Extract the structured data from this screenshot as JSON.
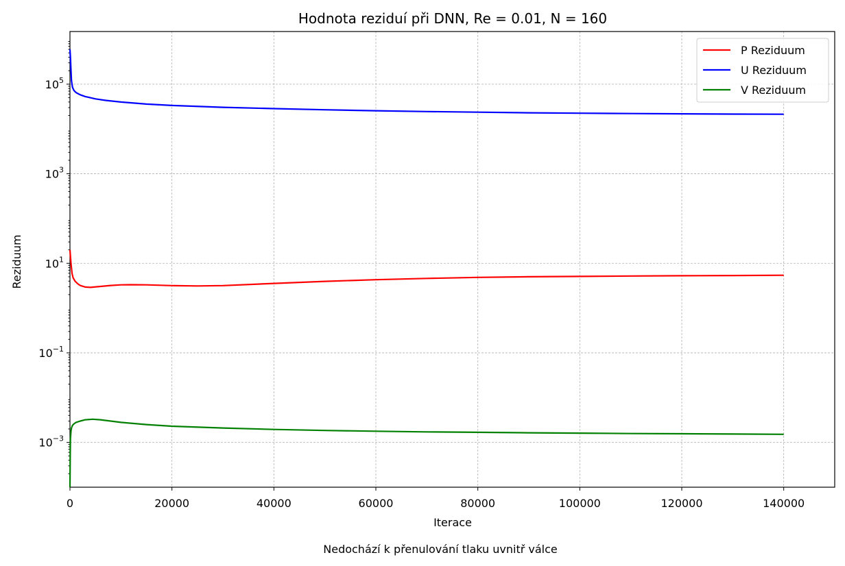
{
  "chart_data": {
    "type": "line",
    "title": "Hodnota reziduí při DNN, Re = 0.01, N = 160",
    "xlabel": "Iterace",
    "ylabel": "Reziduum",
    "caption": "Nedochází k přenulování tlaku uvnitř válce",
    "xlim": [
      0,
      150000
    ],
    "ylim": [
      0.0001,
      1500000
    ],
    "y_scale": "log",
    "grid": true,
    "legend_position": "top-right",
    "x_ticks": [
      "0",
      "20000",
      "40000",
      "60000",
      "80000",
      "100000",
      "120000",
      "140000"
    ],
    "y_ticks": [
      {
        "base": "10",
        "exp": "5",
        "value": 100000
      },
      {
        "base": "10",
        "exp": "3",
        "value": 1000
      },
      {
        "base": "10",
        "exp": "1",
        "value": 10
      },
      {
        "base": "10",
        "exp": "−1",
        "value": 0.1
      },
      {
        "base": "10",
        "exp": "−3",
        "value": 0.001
      }
    ],
    "series": [
      {
        "name": "P Reziduum",
        "color": "#ff0000",
        "x": [
          0,
          200,
          400,
          600,
          1000,
          1500,
          2000,
          3000,
          4000,
          6000,
          8000,
          10000,
          12000,
          15000,
          20000,
          25000,
          30000,
          40000,
          50000,
          60000,
          70000,
          80000,
          90000,
          100000,
          110000,
          120000,
          130000,
          140000
        ],
        "values": [
          20,
          10,
          6,
          4.8,
          4,
          3.5,
          3.2,
          2.95,
          2.9,
          3.05,
          3.2,
          3.3,
          3.33,
          3.3,
          3.18,
          3.12,
          3.18,
          3.55,
          3.95,
          4.3,
          4.6,
          4.85,
          5.0,
          5.1,
          5.2,
          5.28,
          5.34,
          5.4
        ]
      },
      {
        "name": "U Reziduum",
        "color": "#0000ff",
        "x": [
          0,
          100,
          200,
          300,
          500,
          800,
          1200,
          2000,
          3000,
          5000,
          7000,
          10000,
          15000,
          20000,
          30000,
          40000,
          50000,
          60000,
          70000,
          80000,
          90000,
          100000,
          110000,
          120000,
          130000,
          140000
        ],
        "values": [
          600000,
          400000,
          200000,
          120000,
          85000,
          72000,
          65000,
          58000,
          53000,
          47000,
          43500,
          40000,
          36000,
          33500,
          30500,
          28500,
          26800,
          25500,
          24500,
          23700,
          23000,
          22500,
          22100,
          21800,
          21500,
          21300
        ]
      },
      {
        "name": "V Reziduum",
        "color": "#008000",
        "x": [
          0,
          50,
          100,
          200,
          300,
          500,
          800,
          1200,
          2000,
          3000,
          4500,
          6000,
          8000,
          10000,
          15000,
          20000,
          30000,
          40000,
          50000,
          60000,
          70000,
          80000,
          90000,
          100000,
          110000,
          120000,
          130000,
          140000
        ],
        "values": [
          0.0001,
          0.0005,
          0.0012,
          0.0018,
          0.0021,
          0.0024,
          0.0026,
          0.0028,
          0.003,
          0.0032,
          0.0033,
          0.0032,
          0.003,
          0.0028,
          0.0025,
          0.0023,
          0.0021,
          0.00195,
          0.00185,
          0.00178,
          0.00172,
          0.00168,
          0.00164,
          0.00161,
          0.00158,
          0.00156,
          0.00154,
          0.00152
        ]
      }
    ]
  }
}
